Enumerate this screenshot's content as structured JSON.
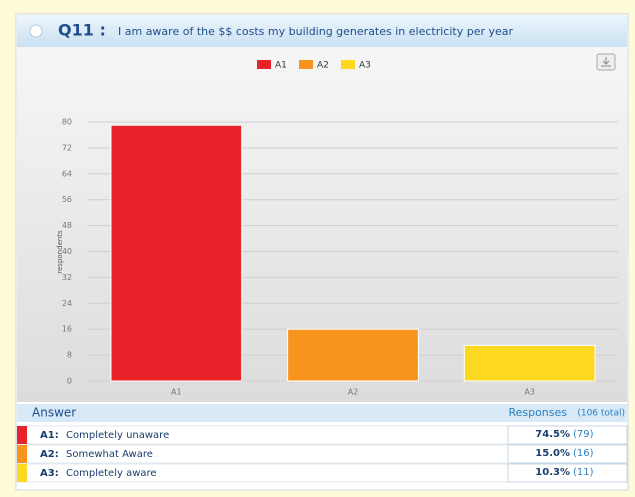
{
  "header": {
    "question": "Q11 :",
    "text": "I am aware of the $$ costs my building generates in electricity per year"
  },
  "chart_data": {
    "type": "bar",
    "y_label": "respondents",
    "categories": [
      "A1",
      "A2",
      "A3"
    ],
    "values": [
      79,
      16,
      11
    ],
    "colors": [
      "#e8232a",
      "#f7941d",
      "#fcd920"
    ],
    "ylim": [
      0,
      80
    ],
    "yticks": [
      0,
      8,
      16,
      24,
      32,
      40,
      48,
      56,
      64,
      72,
      80
    ],
    "grid": true,
    "legend": "top"
  },
  "table": {
    "answer_header": "Answer",
    "responses_header": "Responses",
    "total": "(106 total)",
    "rows": [
      [
        "A1:",
        "Completely unaware",
        "74.5%",
        "(79)"
      ],
      [
        "A2:",
        "Somewhat Aware",
        "15.0%",
        "(16)"
      ],
      [
        "A3:",
        "Completely aware",
        "10.3%",
        "(11)"
      ]
    ]
  }
}
